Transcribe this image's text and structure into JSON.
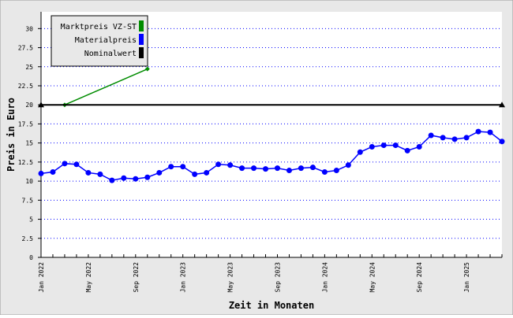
{
  "chart_data": {
    "type": "line",
    "xlabel": "Zeit in Monaten",
    "ylabel": "Preis in Euro",
    "categories": [
      "Jan 2022",
      null,
      null,
      null,
      "May 2022",
      null,
      null,
      null,
      "Sep 2022",
      null,
      null,
      null,
      "Jan 2023",
      null,
      null,
      null,
      "May 2023",
      null,
      null,
      null,
      "Sep 2023",
      null,
      null,
      null,
      "Jan 2024",
      null,
      null,
      null,
      "May 2024",
      null,
      null,
      null,
      "Sep 2024",
      null,
      null,
      null,
      "Jan 2025",
      null,
      null,
      null
    ],
    "series": [
      {
        "name": "Marktpreis VZ-ST",
        "color": "#008c00",
        "marker": "diamond",
        "values": [
          null,
          null,
          20,
          null,
          null,
          null,
          null,
          null,
          null,
          24.7,
          null,
          null,
          null,
          null,
          null,
          null,
          null,
          null,
          null,
          null,
          null,
          null,
          null,
          null,
          null,
          null,
          null,
          null,
          null,
          null,
          null,
          null,
          null,
          null,
          null,
          null,
          null,
          null,
          null,
          null
        ]
      },
      {
        "name": "Materialpreis",
        "color": "#0000ff",
        "marker": "circle",
        "values": [
          11.0,
          11.2,
          12.3,
          12.2,
          11.1,
          10.9,
          10.1,
          10.4,
          10.3,
          10.5,
          11.1,
          11.9,
          11.9,
          10.9,
          11.1,
          12.2,
          12.1,
          11.7,
          11.7,
          11.6,
          11.7,
          11.4,
          11.7,
          11.8,
          11.2,
          11.4,
          12.1,
          13.8,
          14.5,
          14.7,
          14.7,
          14.0,
          14.5,
          16.0,
          15.7,
          15.5,
          15.7,
          16.5,
          16.4,
          15.2
        ]
      },
      {
        "name": "Nominalwert",
        "color": "#000000",
        "marker": "triangle",
        "values": [
          20,
          20,
          20,
          20,
          20,
          20,
          20,
          20,
          20,
          20,
          20,
          20,
          20,
          20,
          20,
          20,
          20,
          20,
          20,
          20,
          20,
          20,
          20,
          20,
          20,
          20,
          20,
          20,
          20,
          20,
          20,
          20,
          20,
          20,
          20,
          20,
          20,
          20,
          20,
          20
        ]
      }
    ],
    "ylim": [
      0,
      32.2
    ],
    "yticks": [
      0,
      2.5,
      5,
      7.5,
      10,
      12.5,
      15,
      17.5,
      20,
      22.5,
      25,
      27.5,
      30
    ],
    "grid": true,
    "legend": "top-left"
  }
}
